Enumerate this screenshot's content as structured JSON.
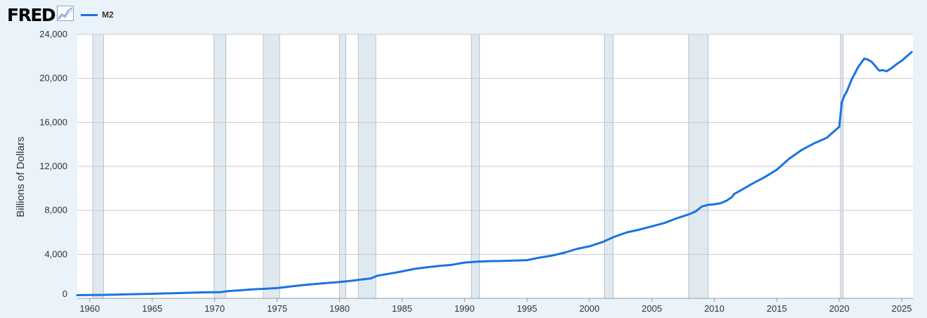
{
  "header": {
    "logo_text": "FRED",
    "logo_icon": "graph-line-icon",
    "legend_label": "M2"
  },
  "colors": {
    "series": "#1a73e0",
    "recession": "#e1e9f0",
    "background": "#eaf2fa",
    "plot_bg": "#ffffff",
    "grid": "#c9c9c9"
  },
  "chart_data": {
    "type": "line",
    "title": "",
    "xlabel": "",
    "ylabel": "Billions of Dollars",
    "xlim": [
      1959,
      2025.9
    ],
    "ylim": [
      0,
      24000
    ],
    "y_ticks": [
      0,
      4000,
      8000,
      12000,
      16000,
      20000,
      24000
    ],
    "y_tick_labels": [
      "0",
      "4,000",
      "8,000",
      "12,000",
      "16,000",
      "20,000",
      "24,000"
    ],
    "x_ticks": [
      1960,
      1965,
      1970,
      1975,
      1980,
      1985,
      1990,
      1995,
      2000,
      2005,
      2010,
      2015,
      2020,
      2025
    ],
    "x_tick_labels": [
      "1960",
      "1965",
      "1970",
      "1975",
      "1980",
      "1985",
      "1990",
      "1995",
      "2000",
      "2005",
      "2010",
      "2015",
      "2020",
      "2025"
    ],
    "grid": true,
    "legend": "top-left",
    "recessions": [
      [
        1960.25,
        1961.1
      ],
      [
        1969.95,
        1970.9
      ],
      [
        1973.9,
        1975.2
      ],
      [
        1980.0,
        1980.5
      ],
      [
        1981.5,
        1982.9
      ],
      [
        1990.55,
        1991.2
      ],
      [
        2001.2,
        2001.9
      ],
      [
        2007.95,
        2009.5
      ],
      [
        2020.1,
        2020.3
      ]
    ],
    "series": [
      {
        "name": "M2",
        "x": [
          1959,
          1960,
          1961,
          1962,
          1963,
          1964,
          1965,
          1966,
          1967,
          1968,
          1969,
          1970,
          1970.5,
          1971,
          1972,
          1973,
          1974,
          1975,
          1976,
          1977,
          1978,
          1979,
          1980,
          1981,
          1982,
          1982.5,
          1983,
          1984,
          1985,
          1986,
          1987,
          1988,
          1989,
          1990,
          1991,
          1992,
          1993,
          1994,
          1995,
          1996,
          1997,
          1998,
          1999,
          2000,
          2001,
          2002,
          2003,
          2004,
          2005,
          2006,
          2007,
          2008,
          2008.5,
          2009,
          2009.5,
          2010,
          2010.5,
          2011,
          2011.4,
          2011.6,
          2012,
          2013,
          2014,
          2015,
          2016,
          2017,
          2018,
          2019,
          2019.5,
          2020,
          2020.2,
          2020.4,
          2020.6,
          2021,
          2021.5,
          2022,
          2022.3,
          2022.6,
          2022.9,
          2023.2,
          2023.5,
          2023.8,
          2024.2,
          2024.6,
          2025,
          2025.4,
          2025.8
        ],
        "values": [
          287,
          300,
          315,
          335,
          365,
          390,
          415,
          445,
          475,
          510,
          545,
          555,
          570,
          650,
          730,
          820,
          870,
          930,
          1070,
          1200,
          1300,
          1400,
          1490,
          1600,
          1750,
          1810,
          2050,
          2250,
          2450,
          2680,
          2820,
          2950,
          3050,
          3250,
          3330,
          3380,
          3400,
          3440,
          3470,
          3700,
          3890,
          4150,
          4500,
          4730,
          5100,
          5600,
          6000,
          6250,
          6550,
          6850,
          7280,
          7650,
          7900,
          8350,
          8500,
          8550,
          8650,
          8900,
          9200,
          9500,
          9750,
          10400,
          11000,
          11700,
          12700,
          13500,
          14100,
          14600,
          15100,
          15600,
          17800,
          18400,
          18800,
          19900,
          21000,
          21800,
          21700,
          21500,
          21100,
          20700,
          20750,
          20650,
          20950,
          21300,
          21600,
          22000,
          22400
        ]
      }
    ]
  }
}
